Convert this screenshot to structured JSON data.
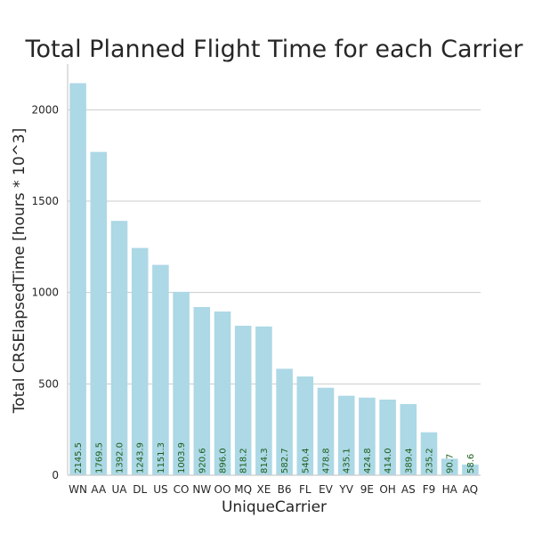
{
  "chart_data": {
    "type": "bar",
    "title": "Total Planned Flight Time for each Carrier",
    "xlabel": "UniqueCarrier",
    "ylabel": "Total CRSElapsedTime [hours * 10^3]",
    "ylim": [
      0,
      2250
    ],
    "yticks": [
      0,
      500,
      1000,
      1500,
      2000
    ],
    "grid": true,
    "bar_color": "#add8e6",
    "label_color": "#1a5e1a",
    "categories": [
      "WN",
      "AA",
      "UA",
      "DL",
      "US",
      "CO",
      "NW",
      "OO",
      "MQ",
      "XE",
      "B6",
      "FL",
      "EV",
      "YV",
      "9E",
      "OH",
      "AS",
      "F9",
      "HA",
      "AQ"
    ],
    "values": [
      2145.5,
      1769.5,
      1392.0,
      1243.9,
      1151.3,
      1003.9,
      920.6,
      896.0,
      818.2,
      814.3,
      582.7,
      540.4,
      478.8,
      435.1,
      424.8,
      414.0,
      389.4,
      235.2,
      90.7,
      58.6
    ],
    "value_labels": [
      "2145.5",
      "1769.5",
      "1392.0",
      "1243.9",
      "1151.3",
      "1003.9",
      "920.6",
      "896.0",
      "818.2",
      "814.3",
      "582.7",
      "540.4",
      "478.8",
      "435.1",
      "424.8",
      "414.0",
      "389.4",
      "235.2",
      "90.7",
      "58.6"
    ]
  }
}
